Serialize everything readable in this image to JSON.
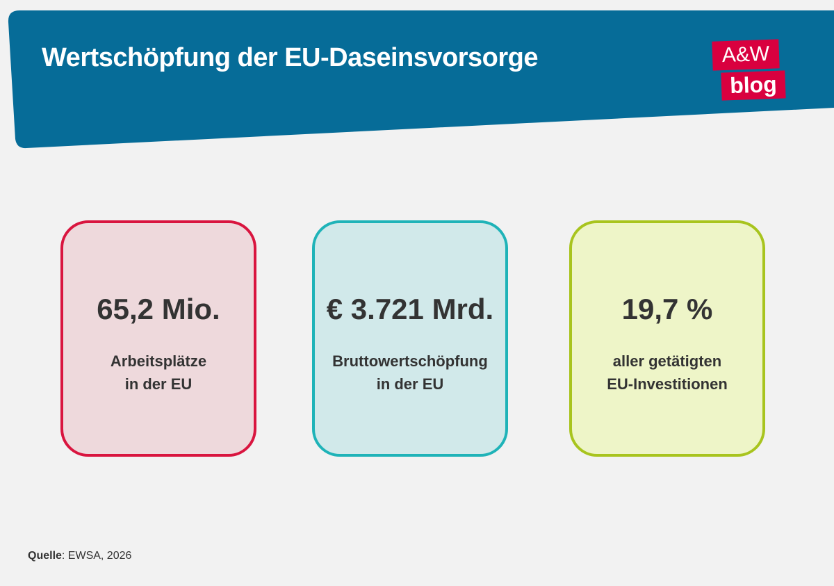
{
  "header": {
    "title": "Wertschöpfung der EU-Daseinsvorsorge"
  },
  "logo": {
    "top": "A&W",
    "bottom": "blog"
  },
  "cards": [
    {
      "value": "65,2 Mio.",
      "label": [
        "Arbeitsplätze",
        "in der EU"
      ]
    },
    {
      "value": "€ 3.721 Mrd.",
      "label": [
        "Bruttowertschöpfung",
        "in der EU"
      ]
    },
    {
      "value": "19,7 %",
      "label": [
        "aller getätigten",
        "EU-Investitionen"
      ]
    }
  ],
  "source": {
    "label": "Quelle",
    "text": ": EWSA, 2026"
  }
}
